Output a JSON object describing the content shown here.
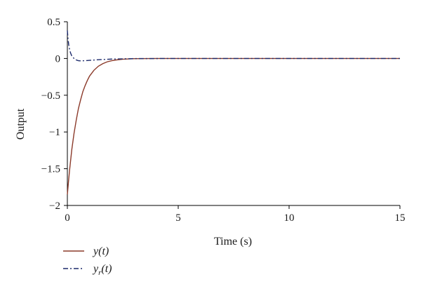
{
  "chart_data": {
    "type": "line",
    "title": "",
    "xlabel": "Time (s)",
    "ylabel": "Output",
    "xlim": [
      0,
      15
    ],
    "ylim": [
      -2,
      0.5
    ],
    "x_ticks": [
      0,
      5,
      10,
      15
    ],
    "x_tick_labels": [
      "0",
      "5",
      "10",
      "15"
    ],
    "y_ticks": [
      0.5,
      0,
      -0.5,
      -1,
      -1.5,
      -2
    ],
    "y_tick_labels": [
      "0.5",
      "0",
      "−0.5",
      "−1",
      "−1.5",
      "−2"
    ],
    "grid": false,
    "legend_position": "bottom-left",
    "series": [
      {
        "name": "y(t)",
        "legend_main": "y",
        "legend_sub": "",
        "legend_suffix": "(t)",
        "color": "#8b3a2a",
        "style": "solid",
        "x": [
          0,
          0.05,
          0.1,
          0.2,
          0.3,
          0.4,
          0.5,
          0.6,
          0.7,
          0.8,
          0.9,
          1.0,
          1.2,
          1.4,
          1.6,
          1.8,
          2.0,
          2.2,
          2.5,
          3.0,
          4.0,
          6.0,
          10.0,
          15.0
        ],
        "y": [
          -1.85,
          -1.68,
          -1.52,
          -1.24,
          -1.02,
          -0.84,
          -0.68,
          -0.56,
          -0.45,
          -0.37,
          -0.3,
          -0.24,
          -0.16,
          -0.105,
          -0.07,
          -0.045,
          -0.03,
          -0.02,
          -0.01,
          -0.003,
          0,
          0,
          0,
          0
        ]
      },
      {
        "name": "y_r(t)",
        "legend_main": "y",
        "legend_sub": "r",
        "legend_suffix": "(t)",
        "color": "#1c2a6b",
        "style": "dashdot",
        "x": [
          0,
          0.03,
          0.06,
          0.1,
          0.15,
          0.2,
          0.3,
          0.4,
          0.5,
          0.6,
          0.8,
          1.0,
          1.5,
          2.0,
          3.0,
          5.0,
          10.0,
          15.0
        ],
        "y": [
          0.38,
          0.27,
          0.19,
          0.12,
          0.07,
          0.035,
          0.0,
          -0.02,
          -0.03,
          -0.033,
          -0.03,
          -0.025,
          -0.015,
          -0.008,
          -0.002,
          0,
          0,
          0
        ]
      }
    ]
  }
}
